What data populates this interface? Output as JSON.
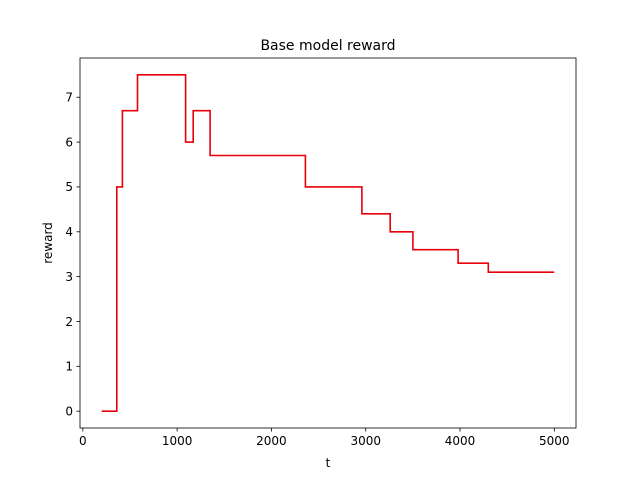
{
  "chart_data": {
    "type": "line",
    "title": "Base model reward",
    "xlabel": "t",
    "ylabel": "reward",
    "xlim": [
      -30,
      5230
    ],
    "ylim": [
      -0.375,
      7.875
    ],
    "xticks": [
      0,
      1000,
      2000,
      3000,
      4000,
      5000
    ],
    "yticks": [
      0,
      1,
      2,
      3,
      4,
      5,
      6,
      7
    ],
    "grid": false,
    "line_color": "#e8000b",
    "series": [
      {
        "step": "post",
        "x": [
          200,
          360,
          420,
          580,
          1090,
          1170,
          1350,
          2360,
          2960,
          3260,
          3500,
          3980,
          4300,
          5000
        ],
        "y": [
          0.0,
          5.0,
          6.7,
          7.5,
          6.0,
          6.7,
          5.7,
          5.0,
          4.4,
          4.0,
          3.6,
          3.3,
          3.1,
          3.1
        ]
      }
    ]
  }
}
